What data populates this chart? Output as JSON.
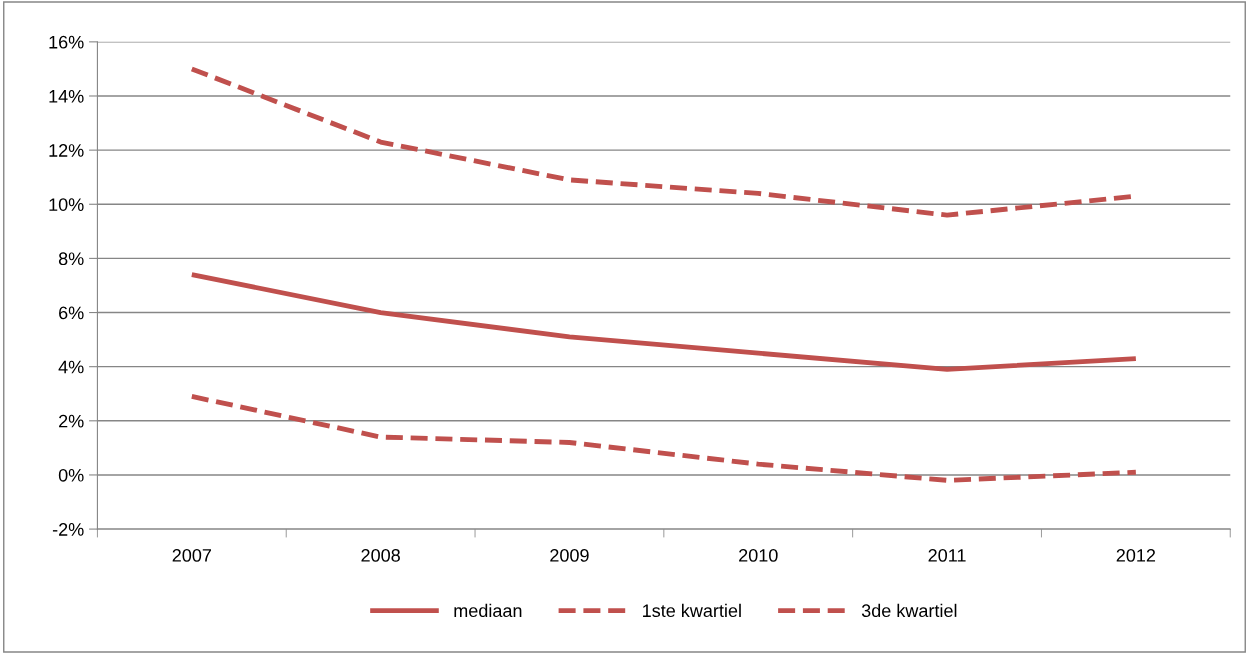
{
  "chart_data": {
    "type": "line",
    "categories": [
      "2007",
      "2008",
      "2009",
      "2010",
      "2011",
      "2012"
    ],
    "series": [
      {
        "name": "mediaan",
        "color": "#c0504d",
        "line_style": "solid",
        "values": [
          7.4,
          6.0,
          5.1,
          4.5,
          3.9,
          4.3
        ]
      },
      {
        "name": "1ste kwartiel",
        "color": "#c0504d",
        "line_style": "dashed",
        "values": [
          2.9,
          1.4,
          1.2,
          0.4,
          -0.2,
          0.1
        ]
      },
      {
        "name": "3de kwartiel",
        "color": "#c0504d",
        "line_style": "dashed",
        "values": [
          15.0,
          12.3,
          10.9,
          10.4,
          9.6,
          10.3
        ]
      }
    ],
    "ylim": [
      -2,
      16
    ],
    "yticks": [
      {
        "value": -2,
        "label": "-2%"
      },
      {
        "value": 0,
        "label": "0%"
      },
      {
        "value": 2,
        "label": "2%"
      },
      {
        "value": 4,
        "label": "4%"
      },
      {
        "value": 6,
        "label": "6%"
      },
      {
        "value": 8,
        "label": "8%"
      },
      {
        "value": 10,
        "label": "10%"
      },
      {
        "value": 12,
        "label": "12%"
      },
      {
        "value": 14,
        "label": "14%"
      },
      {
        "value": 16,
        "label": "16%"
      }
    ],
    "grid": "y",
    "legend": "bottom",
    "marker": "none"
  }
}
